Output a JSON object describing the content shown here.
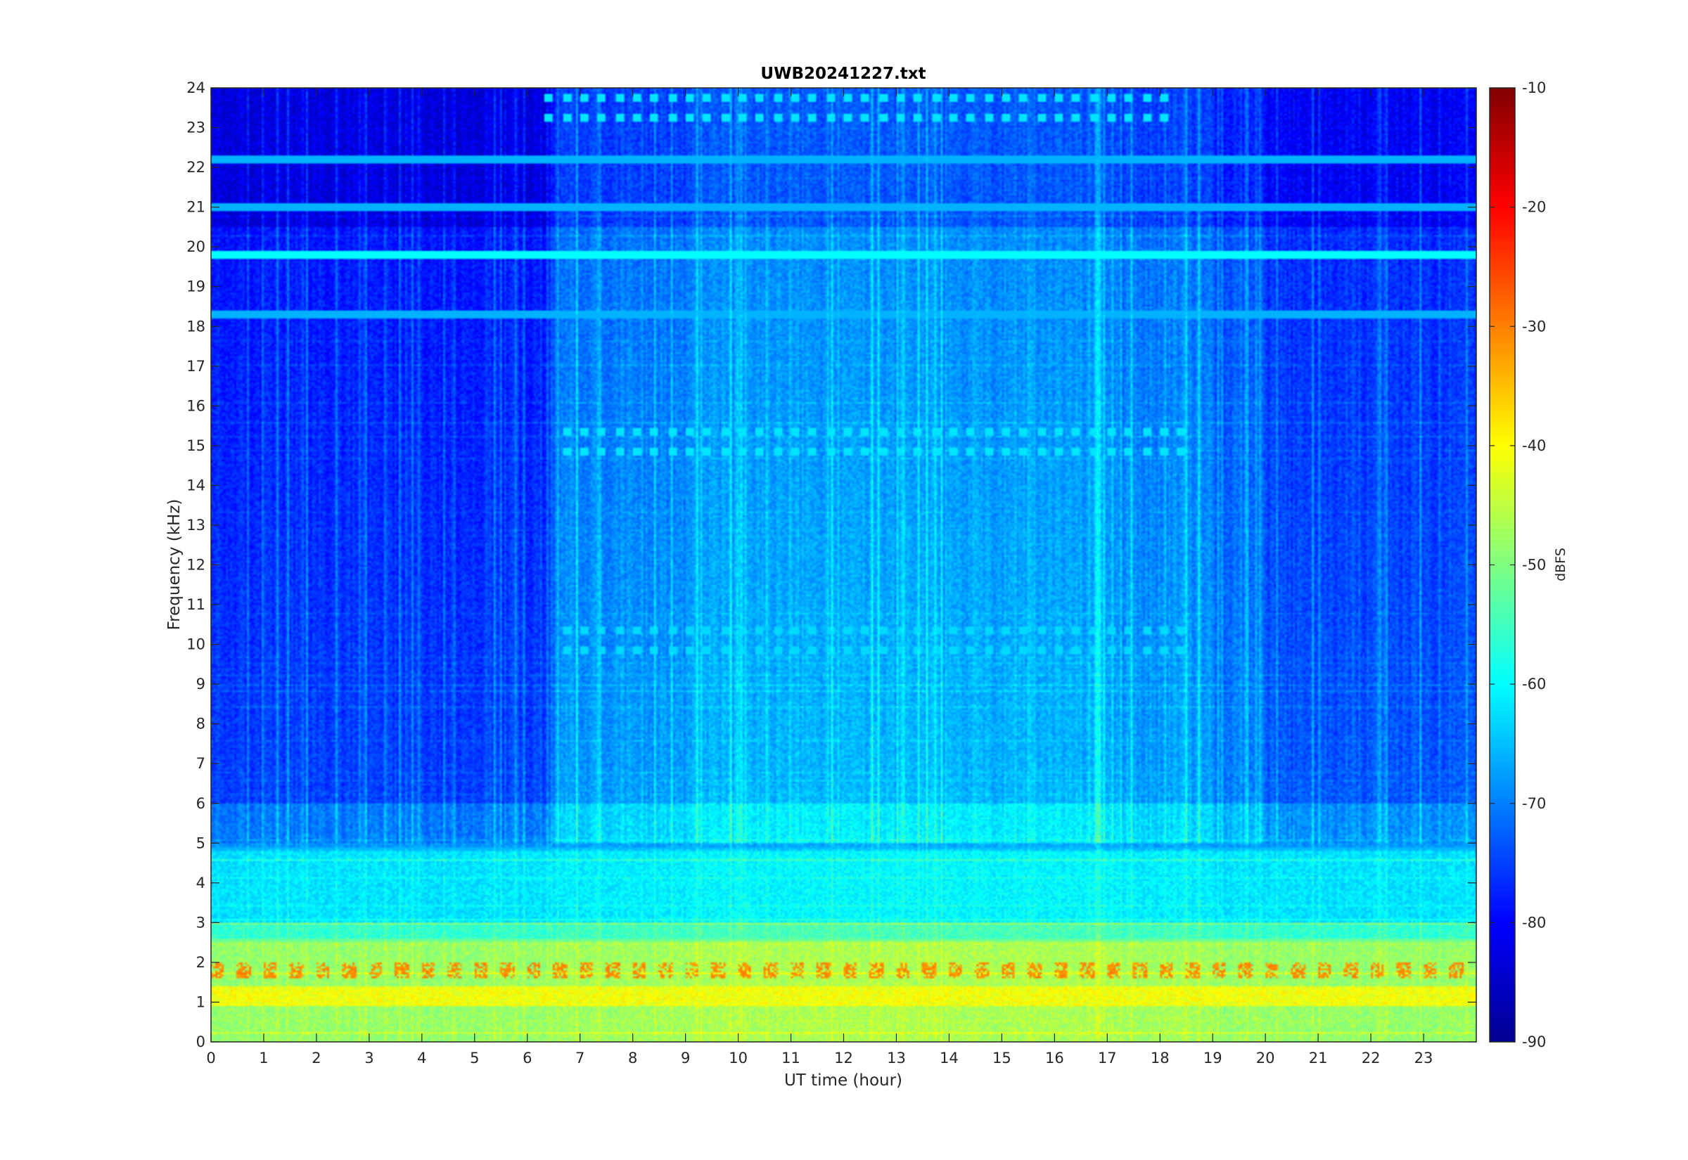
{
  "chart_data": {
    "type": "heatmap",
    "title": "UWB20241227.txt",
    "xlabel": "UT time (hour)",
    "ylabel": "Frequency (kHz)",
    "xlim": [
      0,
      24
    ],
    "ylim": [
      0,
      24
    ],
    "x_ticks": [
      0,
      1,
      2,
      3,
      4,
      5,
      6,
      7,
      8,
      9,
      10,
      11,
      12,
      13,
      14,
      15,
      16,
      17,
      18,
      19,
      20,
      21,
      22,
      23
    ],
    "y_ticks": [
      0,
      1,
      2,
      3,
      4,
      5,
      6,
      7,
      8,
      9,
      10,
      11,
      12,
      13,
      14,
      15,
      16,
      17,
      18,
      19,
      20,
      21,
      22,
      23,
      24
    ],
    "colorbar": {
      "label": "dBFS",
      "range": [
        -90,
        -10
      ],
      "ticks": [
        -10,
        -20,
        -30,
        -40,
        -50,
        -60,
        -70,
        -80,
        -90
      ],
      "colormap": "jet"
    },
    "features": {
      "persistent_lines_khz": [
        19.8,
        18.3,
        21.0,
        22.2,
        4.2,
        4.8,
        2.5,
        1.8,
        1.1,
        0.1
      ],
      "pulsed_bands": [
        {
          "freq_khz": 15.1,
          "t_start_h": 6.6,
          "t_end_h": 18.6,
          "level_dbfs": -62
        },
        {
          "freq_khz": 10.1,
          "t_start_h": 6.6,
          "t_end_h": 18.6,
          "level_dbfs": -63
        },
        {
          "freq_khz": 23.5,
          "t_start_h": 6.3,
          "t_end_h": 18.2,
          "level_dbfs": -62
        }
      ],
      "low_freq_peak_dbfs": -33,
      "background_high_freq_dbfs": -80
    }
  },
  "colors": {
    "axis": "#262626",
    "background": "#ffffff"
  }
}
